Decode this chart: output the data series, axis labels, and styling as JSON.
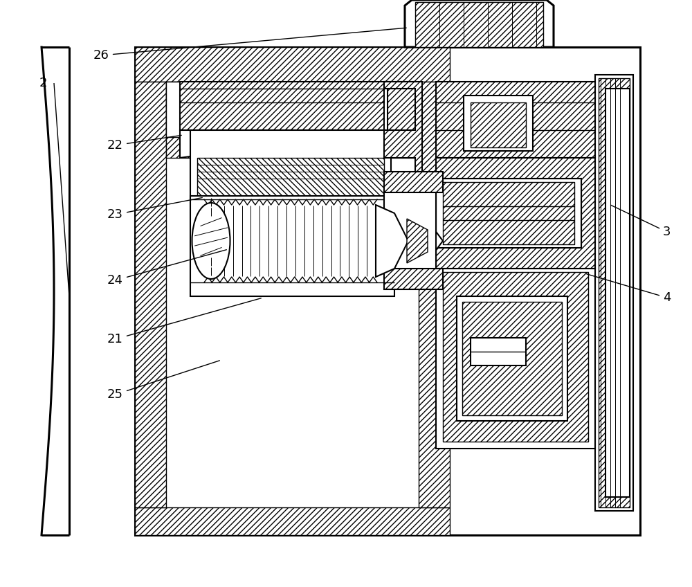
{
  "bg_color": "#ffffff",
  "lw_thick": 2.2,
  "lw_med": 1.5,
  "lw_thin": 1.0,
  "lw_vthin": 0.7,
  "figsize": [
    10.0,
    8.48
  ],
  "dpi": 100,
  "label_fs": 13
}
